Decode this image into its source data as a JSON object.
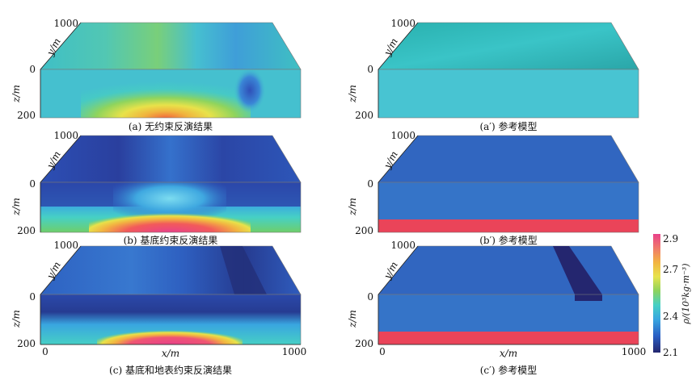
{
  "chart_data": [
    {
      "type": "heatmap",
      "caption": "(a) 无约束反演结果",
      "y_axis_label": "y/m",
      "z_axis_label": "z/m",
      "z_ticks": [
        "0",
        "200"
      ],
      "y_tick": "1000",
      "features": [
        "top: cyan-green streaks",
        "front: yellow-red anomaly centered near bottom middle",
        "front: dark-blue anomaly right of center"
      ]
    },
    {
      "type": "heatmap",
      "caption": "(a′) 参考模型",
      "y_axis_label": "y/m",
      "z_axis_label": "z/m",
      "z_ticks": [
        "0",
        "200"
      ],
      "y_tick": "1000",
      "features": [
        "uniform density ~2.4"
      ]
    },
    {
      "type": "heatmap",
      "caption": "(b) 基底约束反演结果",
      "y_axis_label": "y/m",
      "z_axis_label": "z/m",
      "z_ticks": [
        "0",
        "200"
      ],
      "y_tick": "1000",
      "features": [
        "top: dark blue streaks",
        "front: red-pink basement bulge at bottom center",
        "front: cyan column above bulge"
      ]
    },
    {
      "type": "heatmap",
      "caption": "(b′) 参考模型",
      "y_axis_label": "y/m",
      "z_axis_label": "z/m",
      "z_ticks": [
        "0",
        "200"
      ],
      "y_tick": "1000",
      "features": [
        "background ~2.3",
        "basement layer ~2.9 at bottom"
      ]
    },
    {
      "type": "heatmap",
      "caption": "(c) 基底和地表约束反演结果",
      "y_axis_label": "y/m",
      "z_axis_label": "z/m",
      "z_ticks": [
        "0",
        "200"
      ],
      "y_tick": "1000",
      "x_axis_label": "x/m",
      "x_ticks": [
        "0",
        "1000"
      ],
      "features": [
        "top: dark blue low-density strip toward right",
        "front: red-pink basement bulge at bottom center"
      ]
    },
    {
      "type": "heatmap",
      "caption": "(c′) 参考模型",
      "y_axis_label": "y/m",
      "z_axis_label": "z/m",
      "z_ticks": [
        "0",
        "200"
      ],
      "y_tick": "1000",
      "x_axis_label": "x/m",
      "x_ticks": [
        "0",
        "1000"
      ],
      "features": [
        "background ~2.3",
        "basement layer ~2.9 at bottom",
        "surface low-density bar ~2.1 on top right"
      ]
    }
  ],
  "colorbar": {
    "label": "ρ/(10³kg·m⁻³)",
    "ticks": [
      "2.9",
      "2.7",
      "2.4",
      "2.1"
    ],
    "range": [
      2.1,
      2.9
    ],
    "colors": [
      "#e8418a",
      "#f2a541",
      "#e9e24a",
      "#8fd35a",
      "#44d2c6",
      "#3aa1e0",
      "#2a5fc4",
      "#262a7a"
    ]
  }
}
